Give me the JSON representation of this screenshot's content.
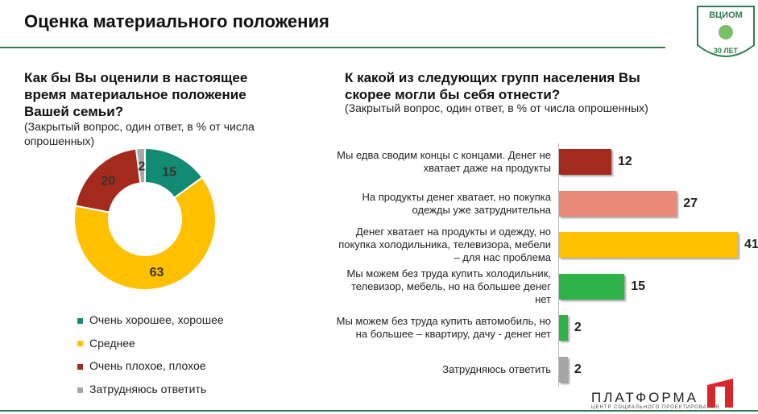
{
  "title": "Оценка материального положения",
  "logos": {
    "vciom": "ВЦИОМ",
    "years": "30 ЛЕТ",
    "platform": "ПЛАТФОРМА",
    "platform_sub": "ЦЕНТР СОЦИАЛЬНОГО ПРОЕКТИРОВАНИЯ"
  },
  "chart_data": [
    {
      "type": "donut",
      "title": "Как бы Вы оценили в настоящее время материальное положение Вашей семьи?",
      "subtitle": "(Закрытый вопрос, один ответ, в % от числа опрошенных)",
      "categories": [
        "Очень хорошее, хорошее",
        "Среднее",
        "Очень плохое, плохое",
        "Затрудняюсь ответить"
      ],
      "values": [
        15,
        63,
        20,
        2
      ],
      "colors": [
        "#138a72",
        "#ffc000",
        "#a52a1e",
        "#a6a6a6"
      ],
      "legend": "bottom"
    },
    {
      "type": "hbar",
      "title": "К какой из следующих групп населения Вы скорее могли бы себя отнести?",
      "subtitle": "(Закрытый вопрос, один ответ, в % от числа опрошенных)",
      "categories": [
        "Мы едва сводим концы с концами. Денег не хватает даже на продукты",
        "На продукты денег хватает, но покупка одежды уже затруднительна",
        "Денег хватает на продукты и одежду, но покупка холодильника, телевизора, мебели – для нас проблема",
        "Мы можем без труда купить холодильник, телевизор, мебель, но на большее денег нет",
        "Мы можем без труда купить автомобиль, но на большее – квартиру, дачу - денег нет",
        "Затрудняюсь ответить"
      ],
      "values": [
        12,
        27,
        41,
        15,
        2,
        2
      ],
      "colors": [
        "#a52a1e",
        "#e8897a",
        "#ffc000",
        "#2db34a",
        "#2db34a",
        "#a6a6a6"
      ]
    }
  ]
}
